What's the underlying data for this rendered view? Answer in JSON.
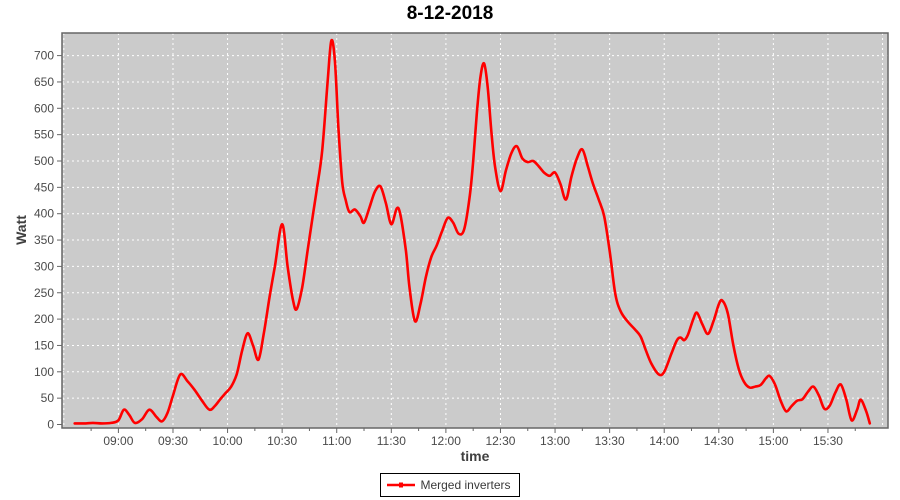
{
  "title": "8-12-2018",
  "axes": {
    "y_label": "Watt",
    "x_label": "time",
    "y_ticks": [
      0,
      50,
      100,
      150,
      200,
      250,
      300,
      350,
      400,
      450,
      500,
      550,
      600,
      650,
      700
    ],
    "x_ticks": [
      "09:00",
      "09:30",
      "10:00",
      "10:30",
      "11:00",
      "11:30",
      "12:00",
      "12:30",
      "13:00",
      "13:30",
      "14:00",
      "14:30",
      "15:00",
      "15:30"
    ]
  },
  "legend": {
    "label": "Merged inverters"
  },
  "colors": {
    "series": "#ff0000",
    "plot_bg": "#cbcbcb",
    "grid": "#ffffff",
    "plot_border": "#666666",
    "tick_text": "#4a4a4a",
    "tick_mark": "#666666"
  },
  "chart_data": {
    "type": "line",
    "title": "8-12-2018",
    "xlabel": "time",
    "ylabel": "Watt",
    "ylim": [
      0,
      743
    ],
    "x_range": [
      "08:29",
      "16:03"
    ],
    "grid": true,
    "grid_style": "white-dashed",
    "legend_position": "bottom-center",
    "series": [
      {
        "name": "Merged inverters",
        "color": "#ff0000",
        "points": [
          [
            "08:36",
            2
          ],
          [
            "08:41",
            2
          ],
          [
            "08:46",
            3
          ],
          [
            "08:51",
            2
          ],
          [
            "08:56",
            3
          ],
          [
            "09:00",
            8
          ],
          [
            "09:03",
            28
          ],
          [
            "09:06",
            18
          ],
          [
            "09:09",
            3
          ],
          [
            "09:13",
            10
          ],
          [
            "09:17",
            28
          ],
          [
            "09:21",
            14
          ],
          [
            "09:24",
            6
          ],
          [
            "09:27",
            22
          ],
          [
            "09:30",
            55
          ],
          [
            "09:34",
            95
          ],
          [
            "09:38",
            82
          ],
          [
            "09:42",
            65
          ],
          [
            "09:46",
            45
          ],
          [
            "09:50",
            28
          ],
          [
            "09:53",
            35
          ],
          [
            "09:56",
            48
          ],
          [
            "09:59",
            60
          ],
          [
            "10:02",
            72
          ],
          [
            "10:05",
            95
          ],
          [
            "10:08",
            140
          ],
          [
            "10:11",
            173
          ],
          [
            "10:14",
            150
          ],
          [
            "10:17",
            123
          ],
          [
            "10:20",
            175
          ],
          [
            "10:23",
            240
          ],
          [
            "10:26",
            300
          ],
          [
            "10:30",
            380
          ],
          [
            "10:33",
            300
          ],
          [
            "10:36",
            235
          ],
          [
            "10:38",
            219
          ],
          [
            "10:41",
            260
          ],
          [
            "10:44",
            330
          ],
          [
            "10:47",
            400
          ],
          [
            "10:49",
            445
          ],
          [
            "10:52",
            520
          ],
          [
            "10:55",
            650
          ],
          [
            "10:57",
            728
          ],
          [
            "10:59",
            690
          ],
          [
            "11:01",
            560
          ],
          [
            "11:03",
            460
          ],
          [
            "11:05",
            425
          ],
          [
            "11:07",
            403
          ],
          [
            "11:10",
            408
          ],
          [
            "11:13",
            395
          ],
          [
            "11:15",
            383
          ],
          [
            "11:18",
            412
          ],
          [
            "11:21",
            442
          ],
          [
            "11:24",
            452
          ],
          [
            "11:27",
            420
          ],
          [
            "11:30",
            380
          ],
          [
            "11:33",
            410
          ],
          [
            "11:35",
            398
          ],
          [
            "11:38",
            330
          ],
          [
            "11:40",
            260
          ],
          [
            "11:43",
            196
          ],
          [
            "11:46",
            228
          ],
          [
            "11:49",
            280
          ],
          [
            "11:52",
            318
          ],
          [
            "11:55",
            340
          ],
          [
            "11:58",
            368
          ],
          [
            "12:01",
            392
          ],
          [
            "12:04",
            383
          ],
          [
            "12:07",
            362
          ],
          [
            "12:10",
            370
          ],
          [
            "12:13",
            430
          ],
          [
            "12:15",
            500
          ],
          [
            "12:17",
            590
          ],
          [
            "12:19",
            660
          ],
          [
            "12:21",
            685
          ],
          [
            "12:23",
            640
          ],
          [
            "12:25",
            555
          ],
          [
            "12:27",
            490
          ],
          [
            "12:30",
            443
          ],
          [
            "12:33",
            482
          ],
          [
            "12:36",
            515
          ],
          [
            "12:39",
            528
          ],
          [
            "12:42",
            505
          ],
          [
            "12:45",
            498
          ],
          [
            "12:48",
            500
          ],
          [
            "12:51",
            490
          ],
          [
            "12:54",
            478
          ],
          [
            "12:57",
            472
          ],
          [
            "13:00",
            478
          ],
          [
            "13:03",
            456
          ],
          [
            "13:06",
            427
          ],
          [
            "13:09",
            470
          ],
          [
            "13:12",
            505
          ],
          [
            "13:15",
            522
          ],
          [
            "13:18",
            490
          ],
          [
            "13:21",
            455
          ],
          [
            "13:24",
            427
          ],
          [
            "13:27",
            395
          ],
          [
            "13:30",
            330
          ],
          [
            "13:33",
            250
          ],
          [
            "13:36",
            215
          ],
          [
            "13:40",
            195
          ],
          [
            "13:44",
            180
          ],
          [
            "13:47",
            167
          ],
          [
            "13:50",
            140
          ],
          [
            "13:53",
            115
          ],
          [
            "13:57",
            95
          ],
          [
            "14:00",
            100
          ],
          [
            "14:04",
            135
          ],
          [
            "14:07",
            160
          ],
          [
            "14:09",
            165
          ],
          [
            "14:11",
            160
          ],
          [
            "14:13",
            170
          ],
          [
            "14:16",
            200
          ],
          [
            "14:18",
            212
          ],
          [
            "14:21",
            190
          ],
          [
            "14:24",
            172
          ],
          [
            "14:27",
            195
          ],
          [
            "14:30",
            228
          ],
          [
            "14:32",
            235
          ],
          [
            "14:35",
            210
          ],
          [
            "14:38",
            150
          ],
          [
            "14:41",
            105
          ],
          [
            "14:44",
            80
          ],
          [
            "14:47",
            70
          ],
          [
            "14:50",
            72
          ],
          [
            "14:53",
            75
          ],
          [
            "14:56",
            88
          ],
          [
            "14:58",
            92
          ],
          [
            "15:01",
            75
          ],
          [
            "15:04",
            45
          ],
          [
            "15:07",
            25
          ],
          [
            "15:10",
            35
          ],
          [
            "15:13",
            45
          ],
          [
            "15:16",
            48
          ],
          [
            "15:19",
            62
          ],
          [
            "15:22",
            72
          ],
          [
            "15:25",
            55
          ],
          [
            "15:28",
            30
          ],
          [
            "15:31",
            36
          ],
          [
            "15:34",
            60
          ],
          [
            "15:37",
            76
          ],
          [
            "15:40",
            48
          ],
          [
            "15:43",
            8
          ],
          [
            "15:46",
            28
          ],
          [
            "15:48",
            47
          ],
          [
            "15:51",
            25
          ],
          [
            "15:53",
            2
          ]
        ]
      }
    ]
  }
}
